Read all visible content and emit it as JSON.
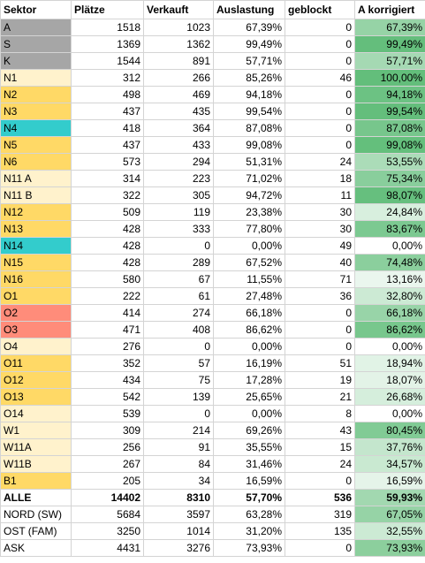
{
  "headers": [
    "Sektor",
    "Plätze",
    "Verkauft",
    "Auslastung",
    "geblockt",
    "A korrigiert"
  ],
  "colors": {
    "gray": "#a6a6a6",
    "orange": "#ffd966",
    "light_orange": "#fff2cc",
    "cyan": "#33cccc",
    "salmon": "#ff8c7a",
    "white": "#ffffff",
    "green_scale_max": "#63be7b"
  },
  "rows": [
    {
      "sektor": "A",
      "plaetze": "1518",
      "verkauft": "1023",
      "auslastung": "67,39%",
      "geblockt": "0",
      "korrigiert": "67,39%",
      "k": 0.6739,
      "fill": "gray"
    },
    {
      "sektor": "S",
      "plaetze": "1369",
      "verkauft": "1362",
      "auslastung": "99,49%",
      "geblockt": "0",
      "korrigiert": "99,49%",
      "k": 0.9949,
      "fill": "gray"
    },
    {
      "sektor": "K",
      "plaetze": "1544",
      "verkauft": "891",
      "auslastung": "57,71%",
      "geblockt": "0",
      "korrigiert": "57,71%",
      "k": 0.5771,
      "fill": "gray"
    },
    {
      "sektor": "N1",
      "plaetze": "312",
      "verkauft": "266",
      "auslastung": "85,26%",
      "geblockt": "46",
      "korrigiert": "100,00%",
      "k": 1.0,
      "fill": "light_orange"
    },
    {
      "sektor": "N2",
      "plaetze": "498",
      "verkauft": "469",
      "auslastung": "94,18%",
      "geblockt": "0",
      "korrigiert": "94,18%",
      "k": 0.9418,
      "fill": "orange"
    },
    {
      "sektor": "N3",
      "plaetze": "437",
      "verkauft": "435",
      "auslastung": "99,54%",
      "geblockt": "0",
      "korrigiert": "99,54%",
      "k": 0.9954,
      "fill": "orange"
    },
    {
      "sektor": "N4",
      "plaetze": "418",
      "verkauft": "364",
      "auslastung": "87,08%",
      "geblockt": "0",
      "korrigiert": "87,08%",
      "k": 0.8708,
      "fill": "cyan"
    },
    {
      "sektor": "N5",
      "plaetze": "437",
      "verkauft": "433",
      "auslastung": "99,08%",
      "geblockt": "0",
      "korrigiert": "99,08%",
      "k": 0.9908,
      "fill": "orange"
    },
    {
      "sektor": "N6",
      "plaetze": "573",
      "verkauft": "294",
      "auslastung": "51,31%",
      "geblockt": "24",
      "korrigiert": "53,55%",
      "k": 0.5355,
      "fill": "orange"
    },
    {
      "sektor": "N11 A",
      "plaetze": "314",
      "verkauft": "223",
      "auslastung": "71,02%",
      "geblockt": "18",
      "korrigiert": "75,34%",
      "k": 0.7534,
      "fill": "light_orange"
    },
    {
      "sektor": "N11 B",
      "plaetze": "322",
      "verkauft": "305",
      "auslastung": "94,72%",
      "geblockt": "11",
      "korrigiert": "98,07%",
      "k": 0.9807,
      "fill": "light_orange"
    },
    {
      "sektor": "N12",
      "plaetze": "509",
      "verkauft": "119",
      "auslastung": "23,38%",
      "geblockt": "30",
      "korrigiert": "24,84%",
      "k": 0.2484,
      "fill": "orange"
    },
    {
      "sektor": "N13",
      "plaetze": "428",
      "verkauft": "333",
      "auslastung": "77,80%",
      "geblockt": "30",
      "korrigiert": "83,67%",
      "k": 0.8367,
      "fill": "orange"
    },
    {
      "sektor": "N14",
      "plaetze": "428",
      "verkauft": "0",
      "auslastung": "0,00%",
      "geblockt": "49",
      "korrigiert": "0,00%",
      "k": 0.0,
      "fill": "cyan"
    },
    {
      "sektor": "N15",
      "plaetze": "428",
      "verkauft": "289",
      "auslastung": "67,52%",
      "geblockt": "40",
      "korrigiert": "74,48%",
      "k": 0.7448,
      "fill": "orange"
    },
    {
      "sektor": "N16",
      "plaetze": "580",
      "verkauft": "67",
      "auslastung": "11,55%",
      "geblockt": "71",
      "korrigiert": "13,16%",
      "k": 0.1316,
      "fill": "orange"
    },
    {
      "sektor": "O1",
      "plaetze": "222",
      "verkauft": "61",
      "auslastung": "27,48%",
      "geblockt": "36",
      "korrigiert": "32,80%",
      "k": 0.328,
      "fill": "orange"
    },
    {
      "sektor": "O2",
      "plaetze": "414",
      "verkauft": "274",
      "auslastung": "66,18%",
      "geblockt": "0",
      "korrigiert": "66,18%",
      "k": 0.6618,
      "fill": "salmon"
    },
    {
      "sektor": "O3",
      "plaetze": "471",
      "verkauft": "408",
      "auslastung": "86,62%",
      "geblockt": "0",
      "korrigiert": "86,62%",
      "k": 0.8662,
      "fill": "salmon"
    },
    {
      "sektor": "O4",
      "plaetze": "276",
      "verkauft": "0",
      "auslastung": "0,00%",
      "geblockt": "0",
      "korrigiert": "0,00%",
      "k": 0.0,
      "fill": "light_orange"
    },
    {
      "sektor": "O11",
      "plaetze": "352",
      "verkauft": "57",
      "auslastung": "16,19%",
      "geblockt": "51",
      "korrigiert": "18,94%",
      "k": 0.1894,
      "fill": "orange"
    },
    {
      "sektor": "O12",
      "plaetze": "434",
      "verkauft": "75",
      "auslastung": "17,28%",
      "geblockt": "19",
      "korrigiert": "18,07%",
      "k": 0.1807,
      "fill": "orange"
    },
    {
      "sektor": "O13",
      "plaetze": "542",
      "verkauft": "139",
      "auslastung": "25,65%",
      "geblockt": "21",
      "korrigiert": "26,68%",
      "k": 0.2668,
      "fill": "orange"
    },
    {
      "sektor": "O14",
      "plaetze": "539",
      "verkauft": "0",
      "auslastung": "0,00%",
      "geblockt": "8",
      "korrigiert": "0,00%",
      "k": 0.0,
      "fill": "light_orange"
    },
    {
      "sektor": "W1",
      "plaetze": "309",
      "verkauft": "214",
      "auslastung": "69,26%",
      "geblockt": "43",
      "korrigiert": "80,45%",
      "k": 0.8045,
      "fill": "light_orange"
    },
    {
      "sektor": "W11A",
      "plaetze": "256",
      "verkauft": "91",
      "auslastung": "35,55%",
      "geblockt": "15",
      "korrigiert": "37,76%",
      "k": 0.3776,
      "fill": "light_orange"
    },
    {
      "sektor": "W11B",
      "plaetze": "267",
      "verkauft": "84",
      "auslastung": "31,46%",
      "geblockt": "24",
      "korrigiert": "34,57%",
      "k": 0.3457,
      "fill": "light_orange"
    },
    {
      "sektor": "B1",
      "plaetze": "205",
      "verkauft": "34",
      "auslastung": "16,59%",
      "geblockt": "0",
      "korrigiert": "16,59%",
      "k": 0.1659,
      "fill": "orange"
    }
  ],
  "summary_rows": [
    {
      "sektor": "ALLE",
      "plaetze": "14402",
      "verkauft": "8310",
      "auslastung": "57,70%",
      "geblockt": "536",
      "korrigiert": "59,93%",
      "k": 0.5993,
      "fill": "white",
      "bold": true
    },
    {
      "sektor": "NORD (SW)",
      "plaetze": "5684",
      "verkauft": "3597",
      "auslastung": "63,28%",
      "geblockt": "319",
      "korrigiert": "67,05%",
      "k": 0.6705,
      "fill": "white",
      "bold": false
    },
    {
      "sektor": "OST (FAM)",
      "plaetze": "3250",
      "verkauft": "1014",
      "auslastung": "31,20%",
      "geblockt": "135",
      "korrigiert": "32,55%",
      "k": 0.3255,
      "fill": "white",
      "bold": false
    },
    {
      "sektor": "ASK",
      "plaetze": "4431",
      "verkauft": "3276",
      "auslastung": "73,93%",
      "geblockt": "0",
      "korrigiert": "73,93%",
      "k": 0.7393,
      "fill": "white",
      "bold": false
    }
  ]
}
